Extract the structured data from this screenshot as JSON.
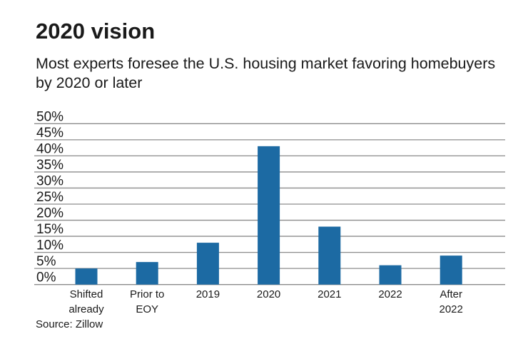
{
  "title": "2020 vision",
  "subtitle": "Most experts foresee the U.S. housing market favoring homebuyers by 2020 or later",
  "source": "Source: Zillow",
  "chart_data": {
    "type": "bar",
    "categories": [
      [
        "Shifted",
        "already"
      ],
      [
        "Prior to",
        "EOY"
      ],
      [
        "2019"
      ],
      [
        "2020"
      ],
      [
        "2021"
      ],
      [
        "2022"
      ],
      [
        "After",
        "2022"
      ]
    ],
    "values": [
      5,
      7,
      13,
      43,
      18,
      6,
      9
    ],
    "ylim": [
      0,
      50
    ],
    "yticks": [
      0,
      5,
      10,
      15,
      20,
      25,
      30,
      35,
      40,
      45,
      50
    ],
    "ytick_labels": [
      "0%",
      "5%",
      "10%",
      "15%",
      "20%",
      "25%",
      "30%",
      "35%",
      "40%",
      "45%",
      "50%"
    ],
    "grid": true,
    "bar_color": "#1c6aa3",
    "grid_color": "#8c8c8c"
  }
}
